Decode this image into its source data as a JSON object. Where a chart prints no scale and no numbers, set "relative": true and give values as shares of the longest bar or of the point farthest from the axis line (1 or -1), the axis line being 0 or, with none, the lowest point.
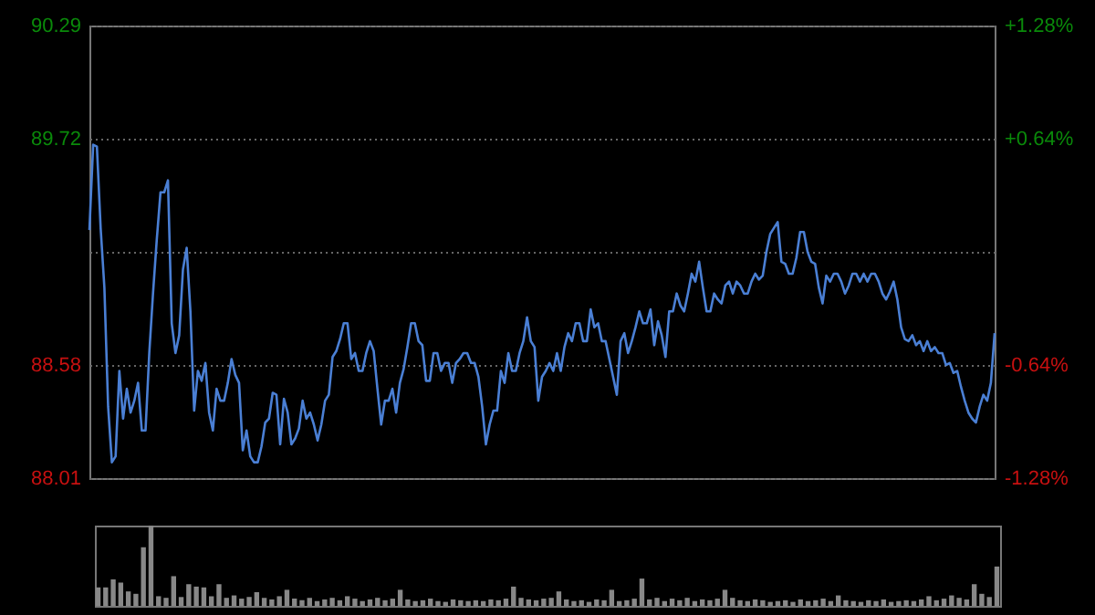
{
  "chart_data": [
    {
      "type": "line",
      "categories": [
        null,
        null,
        null,
        null,
        null,
        null,
        null,
        null,
        null,
        null,
        null,
        null,
        null,
        null,
        null,
        null,
        null,
        null,
        null,
        null,
        null,
        null,
        null,
        null,
        null,
        null,
        null,
        null,
        null,
        null,
        null,
        null,
        null,
        null,
        null,
        null,
        null,
        null,
        null,
        null,
        null,
        null,
        null,
        null,
        null,
        null,
        null,
        null,
        null,
        null,
        null,
        null,
        null,
        null,
        null,
        null,
        null,
        null,
        null,
        null,
        null,
        null,
        null,
        null,
        null,
        null,
        null,
        null,
        null,
        null,
        null,
        null,
        null,
        null,
        null,
        null,
        null,
        null,
        null,
        null,
        null,
        null,
        null,
        null,
        null,
        null,
        null,
        null,
        null,
        null,
        null,
        null,
        null,
        null,
        null,
        null,
        null,
        null,
        null,
        null,
        null,
        null,
        null,
        null,
        null,
        null,
        null,
        null,
        null,
        null,
        null,
        null,
        null,
        null,
        null,
        null,
        null,
        null,
        null,
        null,
        null,
        null,
        null,
        null,
        null,
        null,
        null,
        null,
        null,
        null,
        null,
        null,
        null,
        null,
        null,
        null,
        null,
        null,
        null,
        null,
        null,
        null,
        null,
        null,
        null,
        null,
        null,
        null,
        null,
        null,
        null,
        null,
        null,
        null,
        null,
        null,
        null,
        null,
        null,
        null,
        null,
        null,
        null,
        null,
        null,
        null,
        null,
        null,
        null,
        null,
        null,
        null,
        null,
        null,
        null,
        null,
        null,
        null,
        null,
        null,
        null,
        null,
        null,
        null,
        null,
        null,
        null,
        null,
        null,
        null,
        null,
        null,
        null,
        null,
        null,
        null,
        null,
        null,
        null,
        null,
        null,
        null,
        null,
        null,
        null,
        null,
        null,
        null,
        null,
        null,
        null,
        null,
        null,
        null,
        null,
        null,
        null,
        null,
        null,
        null,
        null,
        null,
        null,
        null,
        null,
        null,
        null,
        null,
        null,
        null,
        null,
        null,
        null,
        null,
        null,
        null,
        null,
        null,
        null,
        null,
        null,
        null,
        null
      ],
      "series": [
        {
          "color": "#4a7fd4",
          "values": [
            89.26,
            89.69,
            89.68,
            89.27,
            88.97,
            88.37,
            88.09,
            88.12,
            88.55,
            88.31,
            88.46,
            88.34,
            88.4,
            88.49,
            88.25,
            88.25,
            88.64,
            88.94,
            89.21,
            89.45,
            89.45,
            89.51,
            88.79,
            88.64,
            88.73,
            89.06,
            89.17,
            88.85,
            88.35,
            88.55,
            88.5,
            88.59,
            88.34,
            88.25,
            88.46,
            88.4,
            88.4,
            88.49,
            88.61,
            88.53,
            88.49,
            88.15,
            88.25,
            88.12,
            88.09,
            88.09,
            88.17,
            88.29,
            88.31,
            88.44,
            88.43,
            88.18,
            88.41,
            88.34,
            88.18,
            88.21,
            88.26,
            88.4,
            88.31,
            88.34,
            88.28,
            88.2,
            88.28,
            88.4,
            88.43,
            88.62,
            88.65,
            88.71,
            88.79,
            88.79,
            88.61,
            88.64,
            88.55,
            88.55,
            88.64,
            88.7,
            88.65,
            88.46,
            88.28,
            88.4,
            88.4,
            88.46,
            88.34,
            88.49,
            88.56,
            88.67,
            88.79,
            88.79,
            88.7,
            88.68,
            88.5,
            88.5,
            88.64,
            88.64,
            88.55,
            88.59,
            88.59,
            88.49,
            88.59,
            88.61,
            88.64,
            88.64,
            88.59,
            88.59,
            88.52,
            88.37,
            88.18,
            88.28,
            88.35,
            88.35,
            88.55,
            88.49,
            88.64,
            88.55,
            88.55,
            88.64,
            88.7,
            88.82,
            88.7,
            88.67,
            88.4,
            88.52,
            88.55,
            88.59,
            88.55,
            88.64,
            88.55,
            88.67,
            88.74,
            88.7,
            88.79,
            88.79,
            88.7,
            88.7,
            88.86,
            88.77,
            88.79,
            88.7,
            88.7,
            88.61,
            88.52,
            88.43,
            88.7,
            88.74,
            88.64,
            88.7,
            88.77,
            88.85,
            88.79,
            88.79,
            88.86,
            88.68,
            88.8,
            88.73,
            88.62,
            88.85,
            88.85,
            88.94,
            88.88,
            88.85,
            88.94,
            89.04,
            89.0,
            89.1,
            88.97,
            88.85,
            88.85,
            88.94,
            88.91,
            88.89,
            88.98,
            89.0,
            88.94,
            89.0,
            88.98,
            88.94,
            88.94,
            89.0,
            89.04,
            89.01,
            89.03,
            89.15,
            89.24,
            89.27,
            89.3,
            89.1,
            89.09,
            89.04,
            89.04,
            89.12,
            89.25,
            89.25,
            89.15,
            89.1,
            89.09,
            88.97,
            88.89,
            89.03,
            89.0,
            89.04,
            89.04,
            89.0,
            88.94,
            88.98,
            89.04,
            89.04,
            89.0,
            89.04,
            89.0,
            89.04,
            89.04,
            89.0,
            88.94,
            88.91,
            88.95,
            89.0,
            88.91,
            88.77,
            88.71,
            88.7,
            88.73,
            88.68,
            88.7,
            88.65,
            88.7,
            88.65,
            88.67,
            88.64,
            88.64,
            88.58,
            88.59,
            88.54,
            88.55,
            88.47,
            88.4,
            88.34,
            88.31,
            88.29,
            88.37,
            88.43,
            88.4,
            88.49,
            88.74
          ]
        }
      ],
      "ylim": [
        88.01,
        90.29
      ],
      "yticks": [
        90.29,
        89.72,
        {
          "value": 89.15,
          "label": null
        },
        88.58,
        88.01
      ],
      "y2lim": [
        -1.28,
        1.28
      ],
      "y2ticks": [
        {
          "value": 1.28,
          "label": "+1.28%"
        },
        {
          "value": 0.64,
          "label": "+0.64%"
        },
        {
          "value": 0,
          "label": null
        },
        {
          "value": -0.64,
          "label": "-0.64%"
        },
        {
          "value": -1.28,
          "label": "-1.28%"
        }
      ],
      "grid": "y"
    },
    {
      "type": "bar",
      "relative": true,
      "color": "#888888",
      "categories": [
        null,
        null,
        null,
        null,
        null,
        null,
        null,
        null,
        null,
        null,
        null,
        null,
        null,
        null,
        null,
        null,
        null,
        null,
        null,
        null,
        null,
        null,
        null,
        null,
        null,
        null,
        null,
        null,
        null,
        null,
        null,
        null,
        null,
        null,
        null,
        null,
        null,
        null,
        null,
        null,
        null,
        null,
        null,
        null,
        null,
        null,
        null,
        null,
        null,
        null,
        null,
        null,
        null,
        null,
        null,
        null,
        null,
        null,
        null,
        null,
        null,
        null,
        null,
        null,
        null,
        null,
        null,
        null,
        null,
        null,
        null,
        null,
        null,
        null,
        null,
        null,
        null,
        null,
        null,
        null,
        null,
        null,
        null,
        null,
        null,
        null,
        null,
        null,
        null,
        null,
        null,
        null,
        null,
        null,
        null,
        null,
        null,
        null,
        null,
        null,
        null,
        null,
        null,
        null,
        null,
        null,
        null,
        null,
        null,
        null,
        null,
        null,
        null,
        null,
        null,
        null,
        null,
        null,
        null,
        null
      ],
      "values": [
        0.23,
        0.23,
        0.33,
        0.29,
        0.18,
        0.15,
        0.73,
        1.0,
        0.12,
        0.1,
        0.37,
        0.11,
        0.27,
        0.24,
        0.23,
        0.12,
        0.27,
        0.1,
        0.13,
        0.09,
        0.11,
        0.17,
        0.1,
        0.08,
        0.12,
        0.2,
        0.09,
        0.07,
        0.1,
        0.06,
        0.08,
        0.1,
        0.07,
        0.12,
        0.09,
        0.06,
        0.08,
        0.1,
        0.07,
        0.09,
        0.2,
        0.08,
        0.06,
        0.07,
        0.09,
        0.06,
        0.05,
        0.08,
        0.07,
        0.06,
        0.07,
        0.06,
        0.08,
        0.07,
        0.09,
        0.24,
        0.1,
        0.08,
        0.07,
        0.09,
        0.1,
        0.18,
        0.08,
        0.06,
        0.07,
        0.05,
        0.08,
        0.07,
        0.2,
        0.06,
        0.07,
        0.09,
        0.34,
        0.08,
        0.1,
        0.06,
        0.09,
        0.07,
        0.1,
        0.06,
        0.08,
        0.07,
        0.09,
        0.2,
        0.1,
        0.07,
        0.06,
        0.08,
        0.07,
        0.05,
        0.06,
        0.07,
        0.05,
        0.08,
        0.06,
        0.07,
        0.09,
        0.06,
        0.13,
        0.07,
        0.06,
        0.05,
        0.07,
        0.06,
        0.08,
        0.05,
        0.06,
        0.07,
        0.06,
        0.08,
        0.12,
        0.07,
        0.09,
        0.13,
        0.1,
        0.08,
        0.27,
        0.15,
        0.11,
        0.49
      ]
    }
  ]
}
